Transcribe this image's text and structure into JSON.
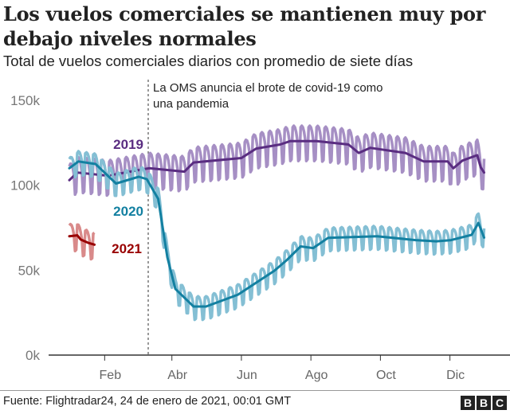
{
  "title": "Los vuelos comerciales se mantienen muy por debajo niveles normales",
  "subtitle": "Total de vuelos comerciales diarios con promedio de siete días",
  "footer": {
    "source": "Fuente: Flightradar24, 24 de enero de 2021, 00:01 GMT",
    "logo": [
      "B",
      "B",
      "C"
    ]
  },
  "chart_data": {
    "type": "line",
    "title": "Los vuelos comerciales se mantienen muy por debajo niveles normales",
    "subtitle": "Total de vuelos comerciales diarios con promedio de siete días",
    "xlabel": "",
    "ylabel": "",
    "ylim": [
      0,
      150000
    ],
    "y_ticks": [
      "0k",
      "50k",
      "100k",
      "150k"
    ],
    "y_tick_values": [
      0,
      50000,
      100000,
      150000
    ],
    "x_ticks": [
      "Feb",
      "Abr",
      "Jun",
      "Ago",
      "Oct",
      "Dic"
    ],
    "x_tick_dates": [
      "02-01",
      "04-01",
      "06-01",
      "08-01",
      "10-01",
      "12-01"
    ],
    "grid": false,
    "annotation": {
      "date": "03-11",
      "text_line1": "La OMS anuncia el brote de covid-19 como",
      "text_line2": "una pandemia"
    },
    "series": [
      {
        "name": "2019",
        "color": "#5a2d81",
        "light_color": "#a68fc4",
        "daily_swing": 9000,
        "x": [
          "01-01",
          "01-08",
          "02-04",
          "03-12",
          "04-12",
          "04-20",
          "06-01",
          "06-14",
          "07-05",
          "07-14",
          "08-06",
          "09-03",
          "09-12",
          "09-22",
          "10-23",
          "11-08",
          "11-29",
          "12-04",
          "12-12",
          "12-25",
          "12-28",
          "12-31"
        ],
        "y": [
          103000,
          107500,
          105600,
          110000,
          108000,
          113400,
          116000,
          121600,
          124000,
          126000,
          126000,
          124000,
          119000,
          122000,
          119000,
          114000,
          114000,
          110000,
          114500,
          117700,
          110600,
          107500
        ]
      },
      {
        "name": "2020",
        "color": "#1380a1",
        "light_color": "#84bfd4",
        "daily_swing": 6000,
        "x": [
          "01-01",
          "01-09",
          "01-24",
          "02-11",
          "03-03",
          "03-10",
          "03-20",
          "03-28",
          "04-04",
          "04-20",
          "05-01",
          "05-29",
          "06-30",
          "07-11",
          "07-23",
          "08-03",
          "08-16",
          "09-28",
          "11-01",
          "11-19",
          "12-02",
          "12-20",
          "12-26",
          "12-31"
        ],
        "y": [
          110000,
          114000,
          112500,
          101000,
          105000,
          103600,
          92000,
          57600,
          39000,
          28600,
          28600,
          35600,
          49700,
          56000,
          64000,
          63000,
          69000,
          70000,
          67700,
          67000,
          67700,
          70800,
          77800,
          69200
        ]
      },
      {
        "name": "2021",
        "color": "#990000",
        "light_color": "#d98a8a",
        "daily_swing": 7000,
        "x": [
          "01-01",
          "01-08",
          "01-11",
          "01-18",
          "01-23"
        ],
        "y": [
          70000,
          70500,
          68000,
          66000,
          65000
        ]
      }
    ]
  }
}
